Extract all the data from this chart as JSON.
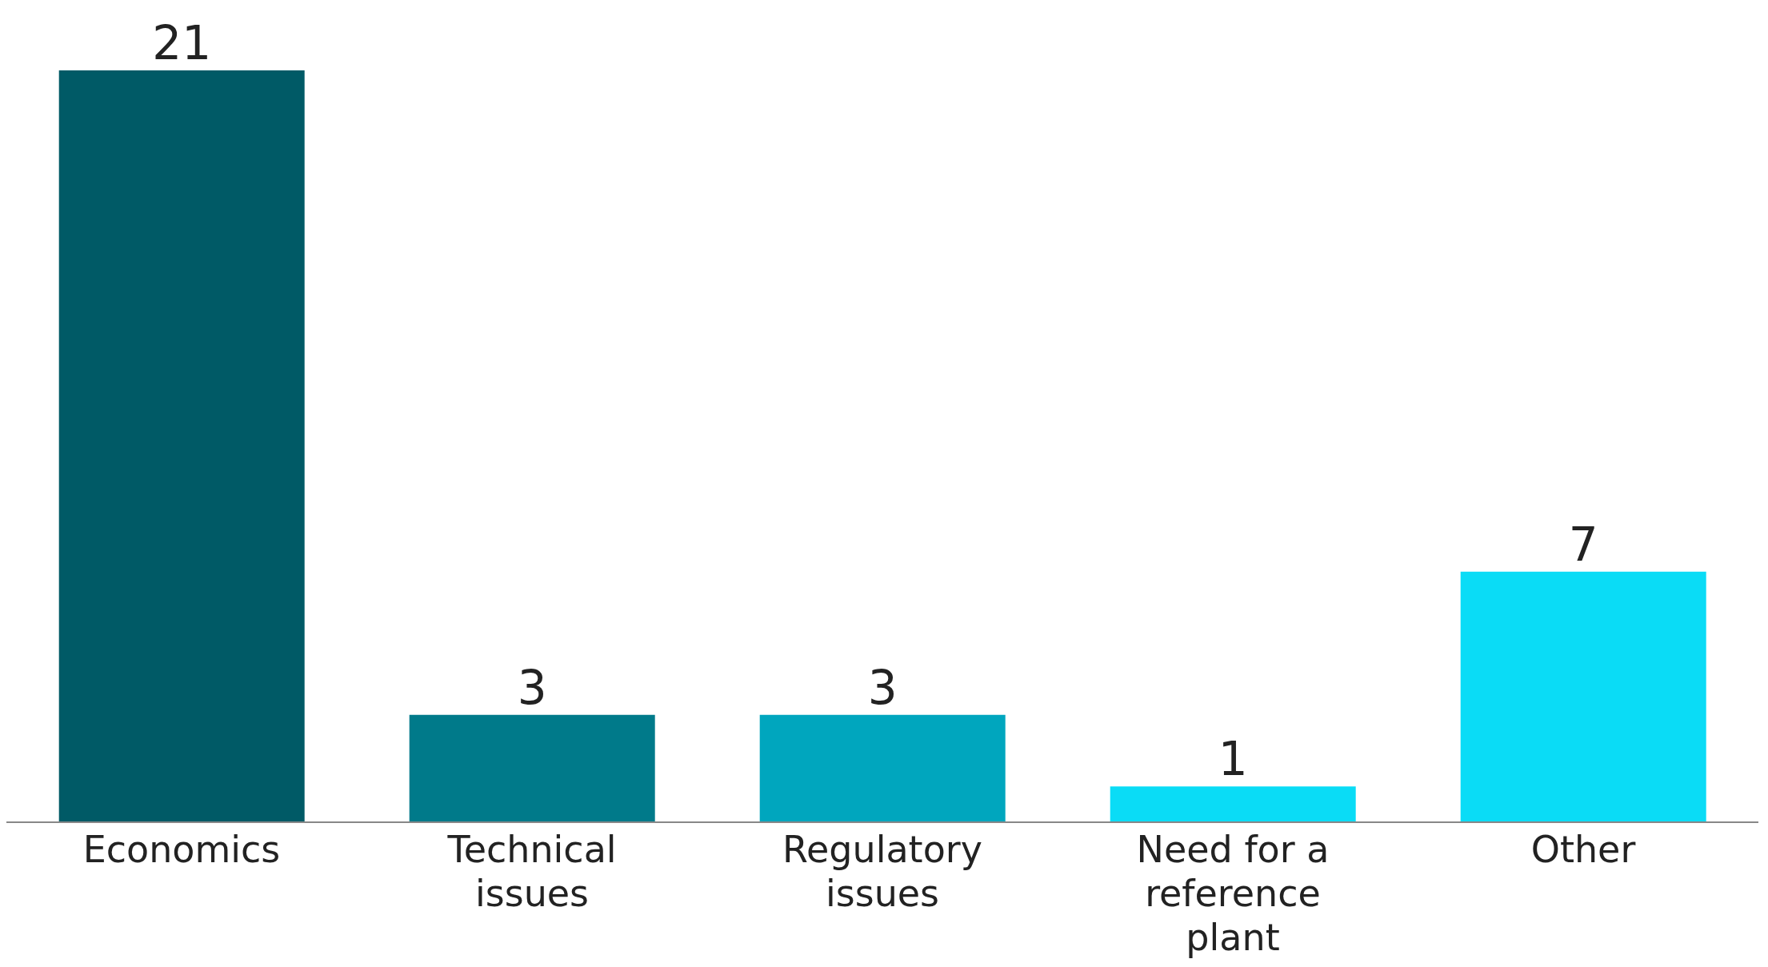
{
  "chart_data": {
    "type": "bar",
    "categories": [
      "Economics",
      "Technical issues",
      "Regulatory issues",
      "Need for a reference plant",
      "Other"
    ],
    "values": [
      21,
      3,
      3,
      1,
      7
    ],
    "colors": [
      "#005a66",
      "#007a8a",
      "#00a6be",
      "#0adcf6",
      "#0adcf6"
    ],
    "data_labels": true
  }
}
